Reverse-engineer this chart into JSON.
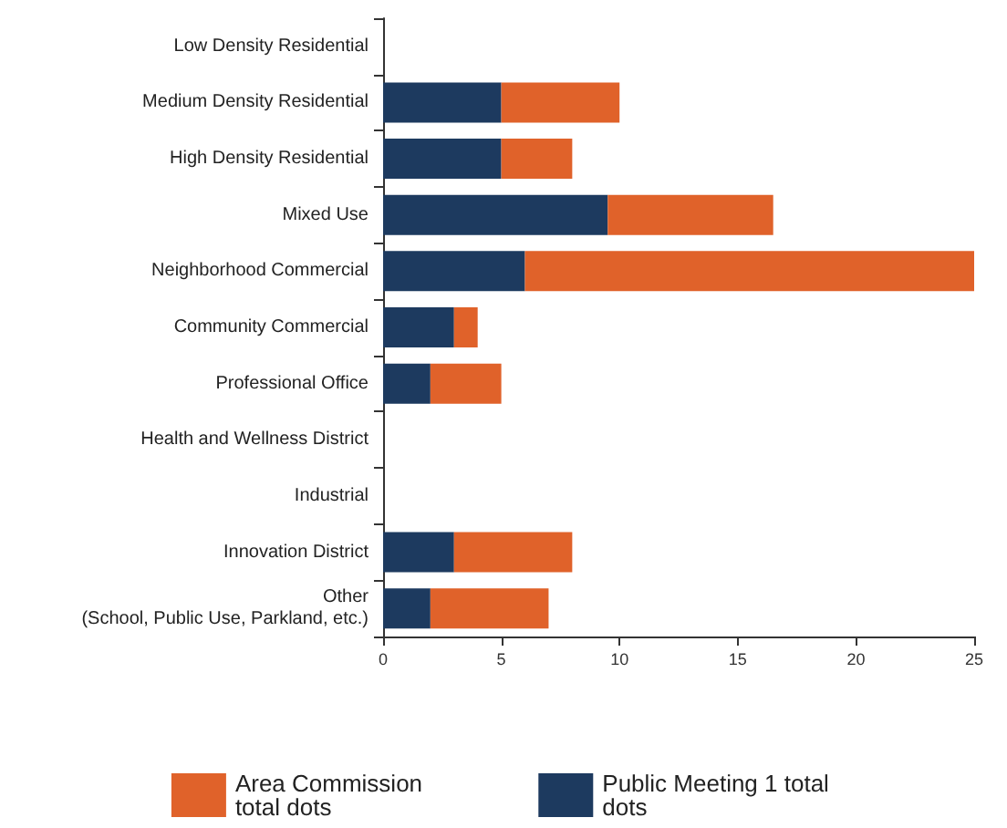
{
  "chart_data": {
    "type": "bar",
    "orientation": "horizontal",
    "stacked": true,
    "categories": [
      "Low Density Residential",
      "Medium Density Residential",
      "High Density Residential",
      "Mixed Use",
      "Neighborhood Commercial",
      "Community Commercial",
      "Professional Office",
      "Health and Wellness District",
      "Industrial",
      "Innovation District",
      "Other\n(School, Public Use, Parkland, etc.)"
    ],
    "series": [
      {
        "name": "Public Meeting 1 total dots",
        "color": "#1d3a5f",
        "values": [
          0,
          5,
          5,
          9.5,
          6,
          3,
          2,
          0,
          0,
          3,
          2
        ]
      },
      {
        "name": "Area Commission total dots",
        "color": "#e0622a",
        "values": [
          0,
          5,
          3,
          7,
          19,
          1,
          3,
          0,
          0,
          5,
          5
        ]
      }
    ],
    "xlim": [
      0,
      25
    ],
    "xticks": [
      0,
      5,
      10,
      15,
      20,
      25
    ],
    "grid": false,
    "legend": "bottom"
  }
}
